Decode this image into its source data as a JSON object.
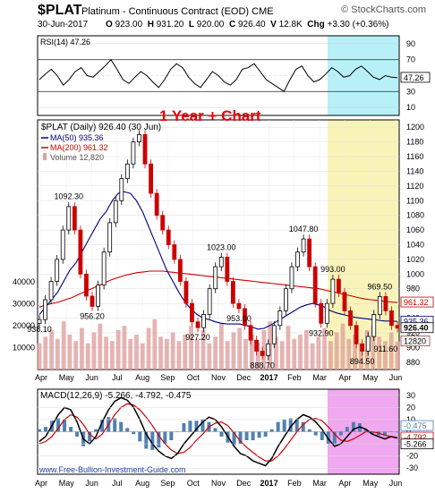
{
  "header": {
    "symbol": "$PLAT",
    "name": "Platinum - Continuous Contract (EOD)",
    "exchange": "CME",
    "brand": "© StockCharts.com",
    "date": "30-Jun-2017",
    "ohlc": {
      "o_label": "O",
      "o": "923.00",
      "h_label": "H",
      "h": "931.20",
      "l_label": "L",
      "l": "920.00",
      "c_label": "C",
      "c": "926.40",
      "v_label": "V",
      "v": "12.8K",
      "chg_label": "Chg",
      "chg": "+3.30 (+0.36%)"
    }
  },
  "annotation": "1 Year + Chart",
  "watermark": "www.Free-Bullion-Investment-Guide.com",
  "colors": {
    "up": "#000000",
    "down": "#cc0000",
    "ma50": "#000080",
    "ma200": "#cc0000",
    "volume": "#e0a0a0",
    "rsi_highlight": "#b8f0f8",
    "price_highlight": "#f8f4b8",
    "macd_highlight": "#f0a8f0",
    "annotation": "#ee0000",
    "macd_hist": "#5080b0"
  },
  "chart_data": [
    {
      "type": "line",
      "panel": "rsi",
      "legend": "RSI(14) 47.26",
      "yticks": [
        10,
        30,
        50,
        70,
        90
      ],
      "ylim": [
        0,
        100
      ],
      "last_value": "47.26",
      "series": [
        {
          "name": "RSI(14)",
          "values": [
            45,
            52,
            58,
            50,
            38,
            45,
            55,
            60,
            50,
            48,
            55,
            62,
            70,
            58,
            45,
            40,
            48,
            55,
            50,
            42,
            35,
            45,
            58,
            65,
            60,
            48,
            40,
            35,
            45,
            55,
            50,
            42,
            38,
            45,
            58,
            60,
            65,
            55,
            45,
            40,
            35,
            30,
            45,
            58,
            62,
            50,
            42,
            45,
            52,
            60,
            55,
            48,
            50,
            58,
            62,
            55,
            48,
            45,
            50,
            48,
            47.26
          ]
        }
      ]
    },
    {
      "type": "candlestick",
      "panel": "price",
      "legend": {
        "price": "$PLAT (Daily) 926.40 (30 Jun)",
        "ma50": "MA(50) 935.36",
        "ma200": "MA(200) 961.32",
        "volume": "Volume 12,820"
      },
      "x_labels": [
        "Apr",
        "May",
        "Jun",
        "Jul",
        "Aug",
        "Sep",
        "Oct",
        "Nov",
        "Dec",
        "2017",
        "Feb",
        "Mar",
        "Apr",
        "May",
        "Jun"
      ],
      "yticks": [
        880,
        900,
        920,
        940,
        960,
        980,
        1000,
        1020,
        1040,
        1060,
        1080,
        1100,
        1120,
        1140,
        1160,
        1180,
        1200
      ],
      "ylim": [
        870,
        1210
      ],
      "volume_ticks": [
        "40000",
        "30000",
        "20000",
        "10000"
      ],
      "value_labels": {
        "ma50": "935.36",
        "ma200": "961.32",
        "close": "926.40",
        "volume": "12820"
      },
      "annotations": [
        {
          "text": "938.10",
          "value": 938.1
        },
        {
          "text": "1092.30",
          "value": 1092.3
        },
        {
          "text": "956.20",
          "value": 956.2
        },
        {
          "text": "1023.00",
          "value": 1023.0
        },
        {
          "text": "927.20",
          "value": 927.2
        },
        {
          "text": "953.00",
          "value": 953.0
        },
        {
          "text": "888.70",
          "value": 888.7
        },
        {
          "text": "1047.80",
          "value": 1047.8
        },
        {
          "text": "932.90",
          "value": 932.9
        },
        {
          "text": "993.00",
          "value": 993.0
        },
        {
          "text": "969.50",
          "value": 969.5
        },
        {
          "text": "894.50",
          "value": 894.5
        },
        {
          "text": "911.60",
          "value": 911.6
        }
      ],
      "close_series": [
        938,
        965,
        990,
        1020,
        1060,
        1092,
        1060,
        1000,
        970,
        956,
        985,
        1030,
        1070,
        1100,
        1130,
        1150,
        1180,
        1190,
        1150,
        1110,
        1080,
        1060,
        1040,
        1020,
        990,
        960,
        935,
        927,
        945,
        980,
        1010,
        1023,
        990,
        960,
        953,
        930,
        910,
        895,
        889,
        905,
        930,
        950,
        980,
        1010,
        1030,
        1047.8,
        1010,
        960,
        933,
        960,
        993,
        975,
        950,
        930,
        905,
        895,
        915,
        945,
        969.5,
        950,
        930,
        926.4
      ],
      "ma50_series": [
        945,
        955,
        965,
        975,
        990,
        1005,
        1015,
        1030,
        1045,
        1060,
        1075,
        1085,
        1100,
        1110,
        1112,
        1110,
        1100,
        1085,
        1065,
        1045,
        1025,
        1005,
        990,
        975,
        962,
        952,
        945,
        940,
        938,
        935,
        933,
        932,
        932,
        932,
        930,
        928,
        925,
        926,
        930,
        935,
        940,
        945,
        950,
        955,
        958,
        960,
        958,
        955,
        950,
        947,
        945,
        943,
        941,
        940,
        939,
        938,
        937,
        936,
        936,
        935.4
      ],
      "ma200_series": [
        955,
        958,
        960,
        962,
        965,
        968,
        972,
        976,
        980,
        984,
        988,
        992,
        995,
        998,
        1000,
        1002,
        1003,
        1004,
        1004,
        1004,
        1003,
        1002,
        1001,
        1000,
        999,
        998,
        997,
        996,
        995,
        994,
        993,
        992,
        991,
        990,
        989,
        988,
        987,
        986,
        985,
        984,
        983,
        982,
        981,
        980,
        978,
        976,
        974,
        972,
        970,
        968,
        966,
        965,
        964,
        963,
        962,
        961.3
      ],
      "volume_series": [
        12000,
        15000,
        18000,
        14000,
        22000,
        16000,
        13000,
        19000,
        12000,
        17000,
        21000,
        15000,
        13000,
        18000,
        20000,
        14000,
        16000,
        12000,
        19000,
        23000,
        15000,
        14000,
        17000,
        13000,
        16000,
        20000,
        14000,
        18000,
        12000,
        15000,
        21000,
        13000,
        17000,
        19000,
        14000,
        16000,
        12000,
        18000,
        22000,
        15000,
        13000,
        20000,
        14000,
        16000,
        18000,
        12000,
        15000,
        19000,
        13000,
        17000,
        21000,
        14000,
        16000,
        12000,
        18000,
        20000,
        15000,
        13000,
        17000,
        12820
      ]
    },
    {
      "type": "line",
      "panel": "macd",
      "legend": "MACD(12,26,9) -5.266, -4.792, -0.475",
      "yticks": [
        -30,
        -20,
        -10,
        0,
        10,
        20,
        30
      ],
      "ylim": [
        -35,
        35
      ],
      "value_labels": {
        "hist": "-0.475",
        "signal": "-4.792",
        "macd": "-5.266"
      },
      "x_labels": [
        "Apr",
        "May",
        "Jun",
        "Jul",
        "Aug",
        "Sep",
        "Oct",
        "Nov",
        "Dec",
        "2017",
        "Feb",
        "Mar",
        "Apr",
        "May",
        "Jun"
      ],
      "series": [
        {
          "name": "MACD",
          "values": [
            -8,
            -4,
            5,
            14,
            20,
            18,
            8,
            -6,
            -10,
            -4,
            8,
            18,
            25,
            28,
            26,
            20,
            10,
            -2,
            -10,
            -16,
            -20,
            -22,
            -18,
            -10,
            -4,
            2,
            8,
            12,
            10,
            4,
            -4,
            -12,
            -18,
            -20,
            -24,
            -26,
            -28,
            -22,
            -12,
            -4,
            4,
            10,
            14,
            12,
            8,
            2,
            -6,
            -12,
            -10,
            -4,
            2,
            4,
            2,
            -2,
            -4,
            -6,
            -4,
            -5.3
          ]
        },
        {
          "name": "Signal",
          "values": [
            -10,
            -8,
            -4,
            3,
            10,
            14,
            12,
            6,
            -2,
            -6,
            -2,
            6,
            14,
            20,
            23,
            22,
            18,
            12,
            5,
            -3,
            -10,
            -15,
            -18,
            -17,
            -13,
            -7,
            -2,
            4,
            7,
            8,
            5,
            -1,
            -8,
            -13,
            -17,
            -21,
            -24,
            -24,
            -20,
            -14,
            -7,
            0,
            6,
            10,
            11,
            9,
            4,
            -2,
            -7,
            -8,
            -6,
            -3,
            0,
            0,
            -1,
            -3,
            -4,
            -4.8
          ]
        }
      ]
    }
  ]
}
